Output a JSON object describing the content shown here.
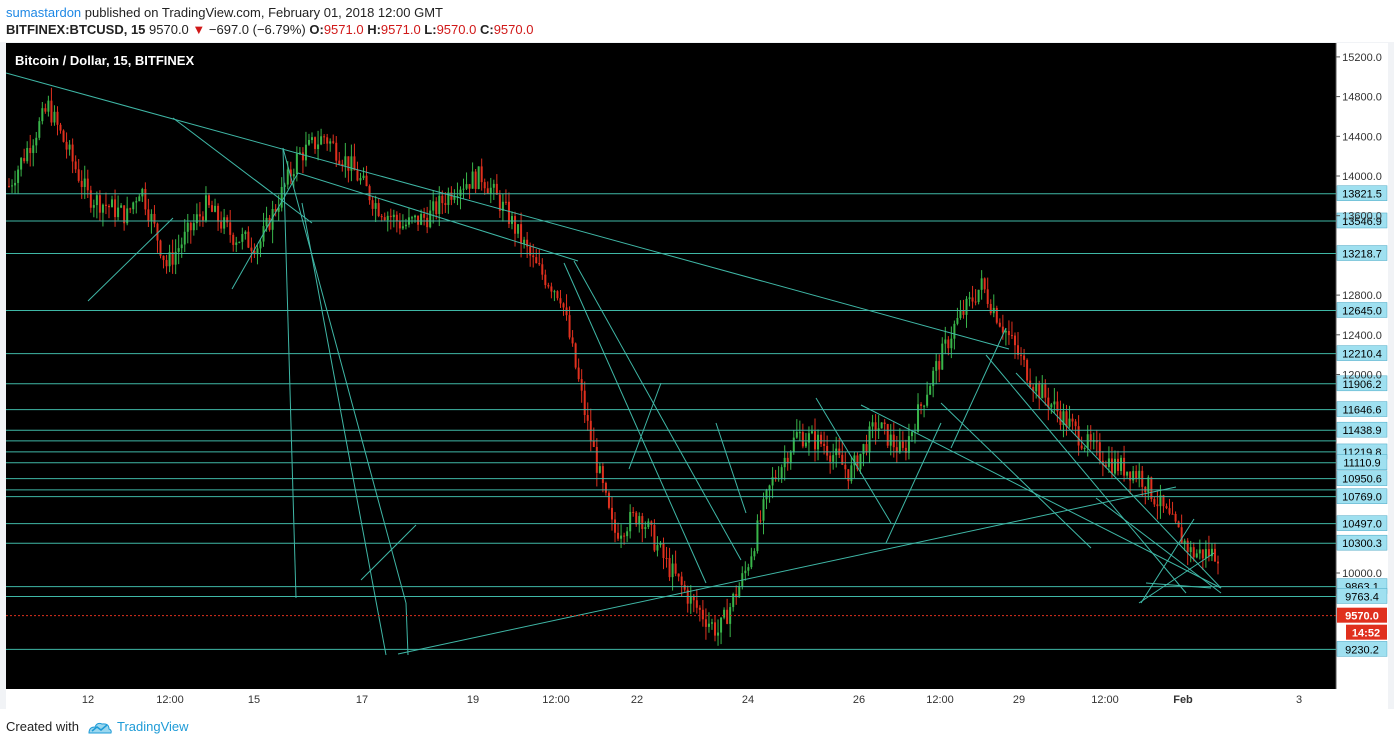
{
  "header": {
    "user": "sumastardon",
    "published": " published on TradingView.com, February 01, 2018 12:00 GMT",
    "symbol": "BITFINEX:BTCUSD, 15",
    "last": " 9570.0 ",
    "change_arrow": "▼",
    "change": " −697.0 (−6.79%) ",
    "o_label": "O:",
    "o_val": "9571.0",
    "h_label": " H:",
    "h_val": "9571.0",
    "l_label": " L:",
    "l_val": "9570.0",
    "c_label": " C:",
    "c_val": "9570.0"
  },
  "chart_data": {
    "type": "candlestick",
    "title": "Bitcoin / Dollar, 15, BITFINEX",
    "colors": {
      "background": "#000000",
      "up": "#39b54a",
      "down": "#e0301e",
      "lines": "#3fb7a6",
      "price_line": "#e0301e",
      "label_bg": "#9fe0f0"
    },
    "y_ticks": [
      15200.0,
      14800.0,
      14400.0,
      14000.0,
      13600.0,
      12800.0,
      12400.0,
      12000.0,
      10000.0
    ],
    "x_ticks": [
      "12",
      "12:00",
      "15",
      "17",
      "19",
      "12:00",
      "22",
      "24",
      "26",
      "12:00",
      "29",
      "12:00",
      "Feb",
      "3"
    ],
    "ylim": [
      9000,
      15400
    ],
    "horizontal_levels": [
      13821.5,
      13546.9,
      13218.7,
      12645.0,
      12210.4,
      11906.2,
      11646.6,
      11438.9,
      11330.7,
      11219.8,
      11110.9,
      10950.6,
      10838.0,
      10769.0,
      10497.0,
      10300.3,
      9863.1,
      9763.4,
      9230.2
    ],
    "level_labels": [
      "13821.5",
      "13546.9",
      "13218.7",
      "12645.0",
      "12210.4",
      "11906.2",
      "11646.6",
      "11438.9",
      "11219.8",
      "11110.9",
      "10950.6",
      "10769.0",
      "10497.0",
      "10300.3",
      "9863.1",
      "9763.4",
      "9230.2"
    ],
    "last_price": "9570.0",
    "countdown": "14:52",
    "close_path": [
      [
        0.0,
        13900
      ],
      [
        0.03,
        14700
      ],
      [
        0.06,
        13800
      ],
      [
        0.09,
        13600
      ],
      [
        0.1,
        13900
      ],
      [
        0.12,
        13100
      ],
      [
        0.15,
        13700
      ],
      [
        0.17,
        13400
      ],
      [
        0.19,
        13300
      ],
      [
        0.22,
        14200
      ],
      [
        0.24,
        14400
      ],
      [
        0.26,
        14100
      ],
      [
        0.28,
        13700
      ],
      [
        0.3,
        13500
      ],
      [
        0.32,
        13600
      ],
      [
        0.34,
        13900
      ],
      [
        0.36,
        14000
      ],
      [
        0.38,
        13600
      ],
      [
        0.4,
        13100
      ],
      [
        0.42,
        12800
      ],
      [
        0.44,
        11500
      ],
      [
        0.46,
        10400
      ],
      [
        0.48,
        10600
      ],
      [
        0.5,
        10100
      ],
      [
        0.52,
        9700
      ],
      [
        0.54,
        9400
      ],
      [
        0.56,
        10000
      ],
      [
        0.58,
        10900
      ],
      [
        0.6,
        11400
      ],
      [
        0.62,
        11300
      ],
      [
        0.64,
        11000
      ],
      [
        0.66,
        11500
      ],
      [
        0.68,
        11200
      ],
      [
        0.7,
        11900
      ],
      [
        0.72,
        12500
      ],
      [
        0.74,
        12900
      ],
      [
        0.76,
        12400
      ],
      [
        0.78,
        11900
      ],
      [
        0.8,
        11600
      ],
      [
        0.82,
        11300
      ],
      [
        0.84,
        11100
      ],
      [
        0.86,
        11000
      ],
      [
        0.88,
        10600
      ],
      [
        0.9,
        10200
      ],
      [
        0.92,
        10200
      ]
    ]
  },
  "footer": {
    "created_with": "Created with",
    "brand": "TradingView"
  }
}
